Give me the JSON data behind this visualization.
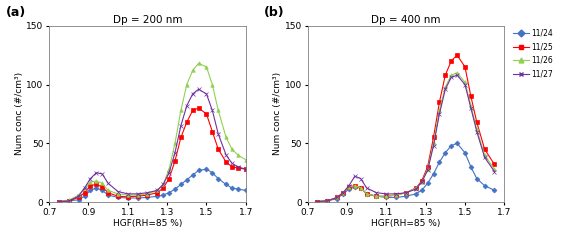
{
  "panel_a": {
    "title": "Dp = 200 nm",
    "label": "(a)",
    "series": {
      "11/24": {
        "color": "#4472C4",
        "marker": "D",
        "x": [
          0.75,
          0.8,
          0.85,
          0.88,
          0.91,
          0.94,
          0.97,
          1.0,
          1.05,
          1.1,
          1.15,
          1.2,
          1.25,
          1.28,
          1.31,
          1.34,
          1.37,
          1.4,
          1.43,
          1.46,
          1.5,
          1.53,
          1.56,
          1.6,
          1.63,
          1.66,
          1.7
        ],
        "y": [
          0.5,
          1.0,
          2.0,
          5.0,
          10.0,
          12.0,
          10.0,
          6.0,
          4.0,
          3.5,
          3.5,
          4.0,
          5.0,
          6.0,
          8.0,
          11.0,
          15.0,
          19.0,
          23.0,
          27.0,
          28.0,
          25.0,
          20.0,
          15.0,
          12.0,
          11.0,
          10.0
        ]
      },
      "11/25": {
        "color": "#FF0000",
        "marker": "s",
        "x": [
          0.75,
          0.8,
          0.85,
          0.88,
          0.91,
          0.94,
          0.97,
          1.0,
          1.05,
          1.1,
          1.15,
          1.2,
          1.25,
          1.28,
          1.31,
          1.34,
          1.37,
          1.4,
          1.43,
          1.46,
          1.5,
          1.53,
          1.56,
          1.6,
          1.63,
          1.66,
          1.7
        ],
        "y": [
          0.5,
          1.0,
          4.0,
          8.0,
          14.0,
          15.0,
          13.0,
          8.0,
          5.0,
          4.5,
          5.0,
          6.0,
          8.0,
          12.0,
          20.0,
          35.0,
          55.0,
          68.0,
          78.0,
          80.0,
          75.0,
          60.0,
          45.0,
          34.0,
          30.0,
          29.0,
          28.0
        ]
      },
      "11/26": {
        "color": "#92D050",
        "marker": "^",
        "x": [
          0.75,
          0.8,
          0.85,
          0.88,
          0.91,
          0.94,
          0.97,
          1.0,
          1.05,
          1.1,
          1.15,
          1.2,
          1.25,
          1.28,
          1.31,
          1.34,
          1.37,
          1.4,
          1.43,
          1.46,
          1.5,
          1.53,
          1.56,
          1.6,
          1.63,
          1.66,
          1.7
        ],
        "y": [
          0.5,
          1.5,
          6.0,
          12.0,
          17.0,
          18.0,
          16.0,
          10.0,
          7.0,
          6.0,
          6.0,
          7.0,
          10.0,
          15.0,
          28.0,
          50.0,
          78.0,
          100.0,
          112.0,
          118.0,
          115.0,
          100.0,
          78.0,
          55.0,
          45.0,
          40.0,
          36.0
        ]
      },
      "11/27": {
        "color": "#7030A0",
        "marker": "x",
        "x": [
          0.75,
          0.8,
          0.85,
          0.88,
          0.91,
          0.94,
          0.97,
          1.0,
          1.05,
          1.1,
          1.15,
          1.2,
          1.25,
          1.28,
          1.31,
          1.34,
          1.37,
          1.4,
          1.43,
          1.46,
          1.5,
          1.53,
          1.56,
          1.6,
          1.63,
          1.66,
          1.7
        ],
        "y": [
          0.5,
          1.0,
          5.0,
          12.0,
          20.0,
          25.0,
          24.0,
          16.0,
          9.0,
          7.0,
          7.0,
          8.0,
          10.0,
          15.0,
          25.0,
          42.0,
          65.0,
          82.0,
          92.0,
          96.0,
          92.0,
          78.0,
          58.0,
          40.0,
          33.0,
          30.0,
          28.0
        ]
      }
    },
    "xlabel": "HGF(RH=85 %)",
    "ylabel": "Num conc (#/cm³)",
    "xlim": [
      0.7,
      1.7
    ],
    "ylim": [
      0,
      150
    ],
    "xticks": [
      0.7,
      0.9,
      1.1,
      1.3,
      1.5,
      1.7
    ],
    "yticks": [
      0,
      50,
      100,
      150
    ]
  },
  "panel_b": {
    "title": "Dp = 400 nm",
    "label": "(b)",
    "series": {
      "11/24": {
        "color": "#4472C4",
        "marker": "D",
        "x": [
          0.75,
          0.8,
          0.85,
          0.88,
          0.91,
          0.94,
          0.97,
          1.0,
          1.05,
          1.1,
          1.15,
          1.2,
          1.25,
          1.28,
          1.31,
          1.34,
          1.37,
          1.4,
          1.43,
          1.46,
          1.5,
          1.53,
          1.56,
          1.6,
          1.65
        ],
        "y": [
          0.5,
          1.0,
          3.0,
          7.0,
          11.0,
          13.0,
          12.0,
          7.0,
          5.0,
          4.0,
          4.0,
          5.0,
          7.0,
          10.0,
          16.0,
          24.0,
          34.0,
          42.0,
          48.0,
          50.0,
          42.0,
          30.0,
          20.0,
          14.0,
          10.0
        ]
      },
      "11/25": {
        "color": "#FF0000",
        "marker": "s",
        "x": [
          0.75,
          0.8,
          0.85,
          0.88,
          0.91,
          0.94,
          0.97,
          1.0,
          1.05,
          1.1,
          1.15,
          1.2,
          1.25,
          1.28,
          1.31,
          1.34,
          1.37,
          1.4,
          1.43,
          1.46,
          1.5,
          1.53,
          1.56,
          1.6,
          1.65
        ],
        "y": [
          0.5,
          1.0,
          4.0,
          8.0,
          13.0,
          14.0,
          12.0,
          7.0,
          5.0,
          5.0,
          6.0,
          8.0,
          12.0,
          18.0,
          30.0,
          55.0,
          85.0,
          108.0,
          120.0,
          125.0,
          115.0,
          90.0,
          68.0,
          45.0,
          32.0
        ]
      },
      "11/26": {
        "color": "#92D050",
        "marker": "^",
        "x": [
          0.75,
          0.8,
          0.85,
          0.88,
          0.91,
          0.94,
          0.97,
          1.0,
          1.05,
          1.1,
          1.15,
          1.2,
          1.25,
          1.28,
          1.31,
          1.34,
          1.37,
          1.4,
          1.43,
          1.46,
          1.5,
          1.53,
          1.56,
          1.6,
          1.65
        ],
        "y": [
          0.5,
          1.0,
          4.0,
          8.0,
          13.0,
          14.0,
          12.0,
          7.0,
          5.0,
          5.0,
          6.0,
          8.0,
          12.0,
          17.0,
          28.0,
          50.0,
          78.0,
          98.0,
          108.0,
          110.0,
          102.0,
          82.0,
          62.0,
          40.0,
          28.0
        ]
      },
      "11/27": {
        "color": "#7030A0",
        "marker": "x",
        "x": [
          0.75,
          0.8,
          0.85,
          0.88,
          0.91,
          0.94,
          0.97,
          1.0,
          1.05,
          1.1,
          1.15,
          1.2,
          1.25,
          1.28,
          1.31,
          1.34,
          1.37,
          1.4,
          1.43,
          1.46,
          1.5,
          1.53,
          1.56,
          1.6,
          1.65
        ],
        "y": [
          0.5,
          1.0,
          4.0,
          8.0,
          14.0,
          22.0,
          20.0,
          12.0,
          8.0,
          7.0,
          7.0,
          8.0,
          11.0,
          17.0,
          27.0,
          48.0,
          75.0,
          96.0,
          106.0,
          108.0,
          100.0,
          80.0,
          60.0,
          38.0,
          26.0
        ]
      }
    },
    "xlabel": "HGF(RH=85 %)",
    "ylabel": "Num conc (#/cm³)",
    "xlim": [
      0.7,
      1.7
    ],
    "ylim": [
      0,
      150
    ],
    "xticks": [
      0.7,
      0.9,
      1.1,
      1.3,
      1.5,
      1.7
    ],
    "yticks": [
      0,
      50,
      100,
      150
    ]
  },
  "legend_labels": [
    "11/24",
    "11/25",
    "11/26",
    "11/27"
  ],
  "legend_colors": [
    "#4472C4",
    "#FF0000",
    "#92D050",
    "#7030A0"
  ],
  "legend_markers": [
    "D",
    "s",
    "^",
    "x"
  ],
  "fig_width": 5.62,
  "fig_height": 2.34,
  "dpi": 100
}
